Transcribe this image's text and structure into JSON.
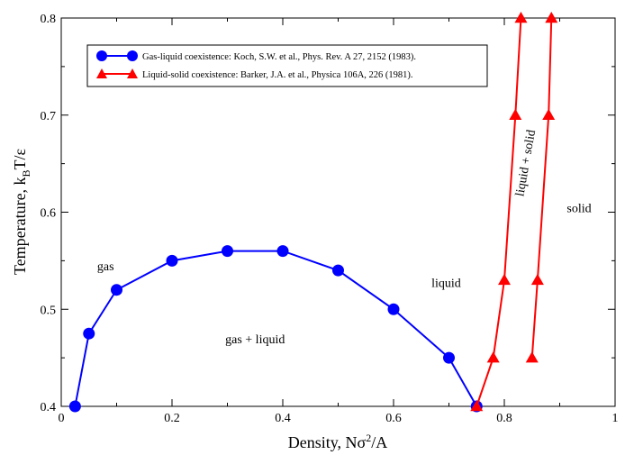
{
  "chart_data": {
    "type": "line",
    "xlabel": "Density, Nσ",
    "xlabel_sup": "2",
    "xlabel_end": "/A",
    "ylabel": "Temperature, k",
    "ylabel_sub": "B",
    "ylabel_end": "T/ε",
    "xlim": [
      0,
      1
    ],
    "ylim": [
      0.4,
      0.8
    ],
    "xticks": [
      0,
      0.2,
      0.4,
      0.6,
      0.8,
      1
    ],
    "xtick_labels": [
      "0",
      "0.2",
      "0.4",
      "0.6",
      "0.8",
      "1"
    ],
    "yticks": [
      0.4,
      0.5,
      0.6,
      0.7,
      0.8
    ],
    "ytick_labels": [
      "0.4",
      "0.5",
      "0.6",
      "0.7",
      "0.8"
    ],
    "grid": false,
    "legend_position": "top-left",
    "series": [
      {
        "name": "Gas-liquid coexistence: Koch, S.W. et al., Phys. Rev. A 27, 2152 (1983).",
        "color": "#0000ff",
        "marker": "circle",
        "x": [
          0.025,
          0.05,
          0.1,
          0.2,
          0.3,
          0.4,
          0.5,
          0.6,
          0.7,
          0.75
        ],
        "y": [
          0.4,
          0.475,
          0.52,
          0.55,
          0.56,
          0.56,
          0.54,
          0.5,
          0.45,
          0.4
        ]
      },
      {
        "name": "Liquid-solid coexistence: Barker, J.A. et al., Physica 106A, 226 (1981).",
        "color": "#ff0000",
        "marker": "triangle",
        "x": [
          0.75,
          0.78,
          0.8,
          0.82,
          0.83
        ],
        "y": [
          0.4,
          0.45,
          0.53,
          0.7,
          0.8
        ]
      },
      {
        "name": "",
        "color": "#ff0000",
        "marker": "triangle",
        "legend": false,
        "x": [
          0.85,
          0.86,
          0.88,
          0.885
        ],
        "y": [
          0.45,
          0.53,
          0.7,
          0.8
        ]
      }
    ],
    "annotations": [
      {
        "text": "gas",
        "x": 0.08,
        "y": 0.54
      },
      {
        "text": "gas + liquid",
        "x": 0.35,
        "y": 0.465
      },
      {
        "text": "liquid",
        "x": 0.695,
        "y": 0.523
      },
      {
        "text": "liquid + solid",
        "x": 0.845,
        "y": 0.65,
        "rotate": -80
      },
      {
        "text": "solid",
        "x": 0.935,
        "y": 0.6
      }
    ]
  }
}
